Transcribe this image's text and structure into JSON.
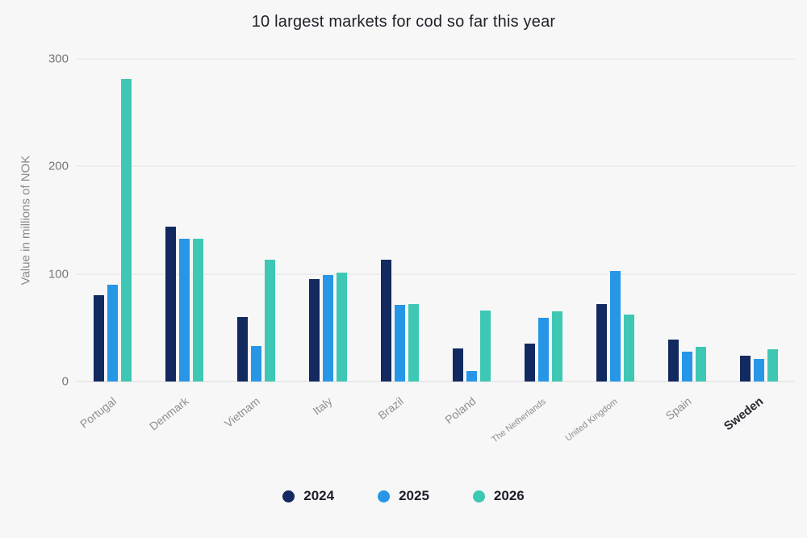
{
  "title": "10 largest markets for cod so far this year",
  "colors": {
    "background": "#f6f7f6",
    "grid": "#e4e4e3",
    "axis_text": "#8e8e8e",
    "title_text": "#21212b"
  },
  "chart_data": {
    "type": "bar",
    "title": "10 largest markets for cod so far this year",
    "xlabel": "",
    "ylabel": "Value in millions of NOK",
    "ylim": [
      0,
      300
    ],
    "yticks": [
      0,
      100,
      200,
      300
    ],
    "grid": true,
    "legend_position": "bottom",
    "categories": [
      "Portugal",
      "Denmark",
      "Vietnam",
      "Italy",
      "Brazil",
      "Poland",
      "The Netherlands",
      "United Kingdom",
      "Spain",
      "Sweden"
    ],
    "highlighted_category": "Sweden",
    "series": [
      {
        "name": "2024",
        "color": "#122a60",
        "values": [
          80,
          144,
          60,
          95,
          113,
          31,
          35,
          72,
          39,
          24
        ]
      },
      {
        "name": "2025",
        "color": "#2796e6",
        "values": [
          90,
          133,
          33,
          99,
          71,
          10,
          59,
          103,
          28,
          21
        ]
      },
      {
        "name": "2026",
        "color": "#3ec7b4",
        "values": [
          281,
          133,
          113,
          101,
          72,
          66,
          65,
          62,
          32,
          30
        ]
      }
    ]
  }
}
